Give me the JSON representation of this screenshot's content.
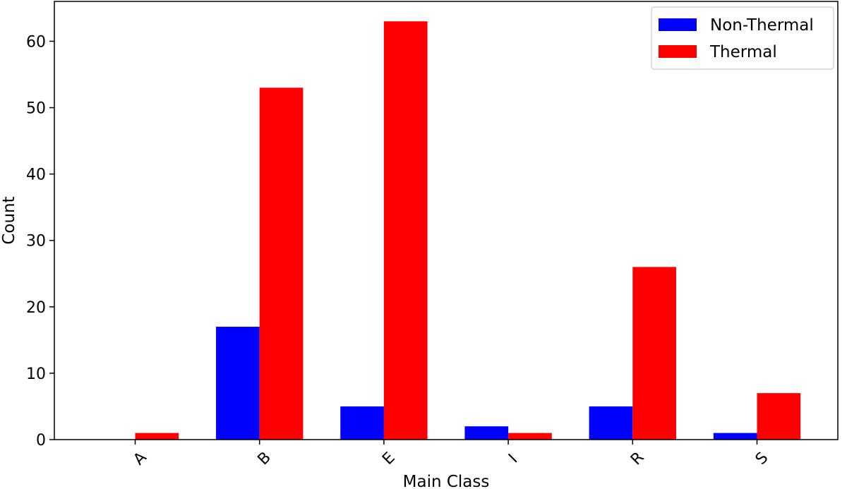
{
  "chart_data": {
    "type": "bar",
    "title": "",
    "xlabel": "Main Class",
    "ylabel": "Count",
    "categories": [
      "A",
      "B",
      "E",
      "I",
      "R",
      "S"
    ],
    "series": [
      {
        "name": "Non-Thermal",
        "color": "#0000ff",
        "values": [
          0,
          17,
          5,
          2,
          5,
          1
        ]
      },
      {
        "name": "Thermal",
        "color": "#ff0000",
        "values": [
          1,
          53,
          63,
          1,
          26,
          7
        ]
      }
    ],
    "ylim": [
      0,
      66
    ],
    "yticks": [
      0,
      10,
      20,
      30,
      40,
      50,
      60
    ],
    "xtick_rotation": 45,
    "grid": false,
    "legend_position": "top-right"
  }
}
